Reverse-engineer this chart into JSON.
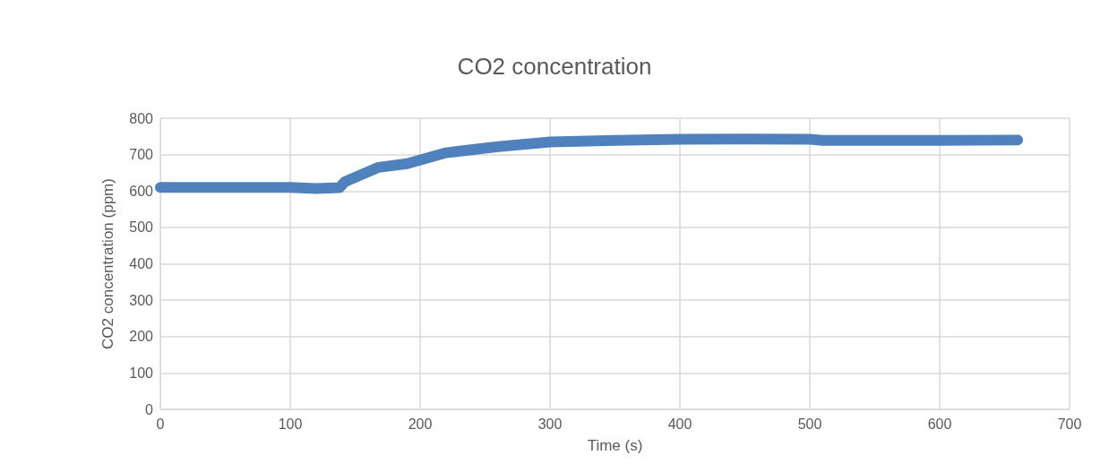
{
  "chart_data": {
    "type": "line",
    "title": "CO2 concentration",
    "xlabel": "Time (s)",
    "ylabel": "CO2 concentration (ppm)",
    "xlim": [
      0,
      700
    ],
    "xticks": [
      0,
      100,
      200,
      300,
      400,
      500,
      600,
      700
    ],
    "ylim": [
      0,
      800
    ],
    "yticks": [
      0,
      100,
      200,
      300,
      400,
      500,
      600,
      700,
      800
    ],
    "grid": true,
    "line_style": "solid",
    "series": [
      {
        "color": "#4f81bd",
        "x": [
          0,
          50,
          100,
          120,
          138,
          142,
          168,
          190,
          220,
          260,
          300,
          350,
          400,
          450,
          500,
          510,
          600,
          660
        ],
        "values": [
          610,
          610,
          610,
          607,
          609,
          625,
          665,
          675,
          705,
          722,
          735,
          739,
          742,
          743,
          742,
          739,
          739,
          740
        ]
      }
    ]
  }
}
